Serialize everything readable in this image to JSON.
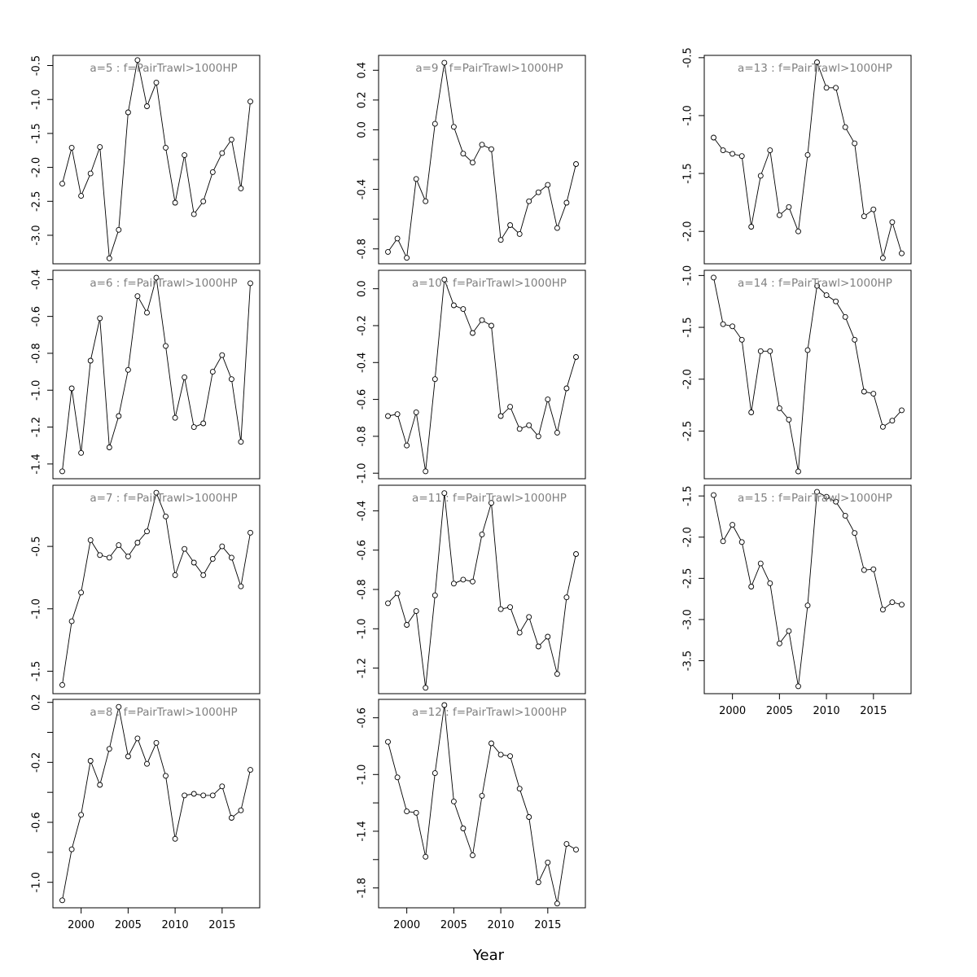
{
  "figure": {
    "xlabel": "Year"
  },
  "colors": {
    "line": "#000000",
    "title": "#808080",
    "frame": "#000000"
  },
  "chart_data": [
    {
      "type": "line",
      "title": "a=5  :  f=PairTrawl>1000HP",
      "x": [
        1998,
        1999,
        2000,
        2001,
        2002,
        2003,
        2004,
        2005,
        2006,
        2007,
        2008,
        2009,
        2010,
        2011,
        2012,
        2013,
        2014,
        2015,
        2016,
        2017,
        2018
      ],
      "values": [
        -2.24,
        -1.71,
        -2.42,
        -2.09,
        -1.7,
        -3.34,
        -2.92,
        -1.19,
        -0.42,
        -1.1,
        -0.75,
        -1.71,
        -2.52,
        -1.82,
        -2.69,
        -2.5,
        -2.07,
        -1.79,
        -1.59,
        -2.31,
        -1.03
      ],
      "xlim": [
        1997,
        2019
      ],
      "ylim": [
        -3.42,
        -0.35
      ],
      "yticks": [
        -3.0,
        -2.5,
        -2.0,
        -1.5,
        -1.0,
        -0.5
      ],
      "xticks": [
        2000,
        2005,
        2010,
        2015
      ],
      "show_xticks": false
    },
    {
      "type": "line",
      "title": "a=6  :  f=PairTrawl>1000HP",
      "x": [
        1998,
        1999,
        2000,
        2001,
        2002,
        2003,
        2004,
        2005,
        2006,
        2007,
        2008,
        2009,
        2010,
        2011,
        2012,
        2013,
        2014,
        2015,
        2016,
        2017,
        2018
      ],
      "values": [
        -1.44,
        -0.99,
        -1.34,
        -0.84,
        -0.61,
        -1.31,
        -1.14,
        -0.89,
        -0.49,
        -0.58,
        -0.39,
        -0.76,
        -1.15,
        -0.93,
        -1.2,
        -1.18,
        -0.9,
        -0.81,
        -0.94,
        -1.28,
        -0.42
      ],
      "xlim": [
        1997,
        2019
      ],
      "ylim": [
        -1.48,
        -0.35
      ],
      "yticks": [
        -1.4,
        -1.2,
        -1.0,
        -0.8,
        -0.6,
        -0.4
      ],
      "xticks": [
        2000,
        2005,
        2010,
        2015
      ],
      "show_xticks": false
    },
    {
      "type": "line",
      "title": "a=7  :  f=PairTrawl>1000HP",
      "x": [
        1998,
        1999,
        2000,
        2001,
        2002,
        2003,
        2004,
        2005,
        2006,
        2007,
        2008,
        2009,
        2010,
        2011,
        2012,
        2013,
        2014,
        2015,
        2016,
        2017,
        2018
      ],
      "values": [
        -1.61,
        -1.1,
        -0.87,
        -0.45,
        -0.57,
        -0.59,
        -0.49,
        -0.58,
        -0.47,
        -0.38,
        -0.07,
        -0.26,
        -0.73,
        -0.52,
        -0.63,
        -0.73,
        -0.6,
        -0.5,
        -0.59,
        -0.82,
        -0.39
      ],
      "xlim": [
        1997,
        2019
      ],
      "ylim": [
        -1.68,
        -0.01
      ],
      "yticks": [
        -1.5,
        -1.0,
        -0.5
      ],
      "xticks": [
        2000,
        2005,
        2010,
        2015
      ],
      "show_xticks": false
    },
    {
      "type": "line",
      "title": "a=8  :  f=PairTrawl>1000HP",
      "x": [
        1998,
        1999,
        2000,
        2001,
        2002,
        2003,
        2004,
        2005,
        2006,
        2007,
        2008,
        2009,
        2010,
        2011,
        2012,
        2013,
        2014,
        2015,
        2016,
        2017,
        2018
      ],
      "values": [
        -1.12,
        -0.78,
        -0.55,
        -0.19,
        -0.35,
        -0.11,
        0.17,
        -0.16,
        -0.04,
        -0.21,
        -0.07,
        -0.29,
        -0.71,
        -0.42,
        -0.41,
        -0.42,
        -0.42,
        -0.36,
        -0.57,
        -0.52,
        -0.25
      ],
      "xlim": [
        1997,
        2019
      ],
      "ylim": [
        -1.17,
        0.22
      ],
      "yticks": [
        -1.0,
        -0.6,
        -0.2,
        0.2
      ],
      "yticks_minor": [
        -0.8,
        -0.4,
        0.0
      ],
      "xticks": [
        2000,
        2005,
        2010,
        2015
      ],
      "show_xticks": true
    },
    {
      "type": "line",
      "title": "a=9  :  f=PairTrawl>1000HP",
      "x": [
        1998,
        1999,
        2000,
        2001,
        2002,
        2003,
        2004,
        2005,
        2006,
        2007,
        2008,
        2009,
        2010,
        2011,
        2012,
        2013,
        2014,
        2015,
        2016,
        2017,
        2018
      ],
      "values": [
        -0.82,
        -0.73,
        -0.86,
        -0.33,
        -0.48,
        0.04,
        0.45,
        0.02,
        -0.16,
        -0.22,
        -0.1,
        -0.13,
        -0.74,
        -0.64,
        -0.7,
        -0.48,
        -0.42,
        -0.37,
        -0.66,
        -0.49,
        -0.23
      ],
      "xlim": [
        1997,
        2019
      ],
      "ylim": [
        -0.9,
        0.5
      ],
      "yticks": [
        -0.8,
        -0.4,
        0.0,
        0.2,
        0.4
      ],
      "yticks_minor": [
        -0.6,
        -0.2
      ],
      "xticks": [
        2000,
        2005,
        2010,
        2015
      ],
      "show_xticks": false
    },
    {
      "type": "line",
      "title": "a=10  :  f=PairTrawl>1000HP",
      "x": [
        1998,
        1999,
        2000,
        2001,
        2002,
        2003,
        2004,
        2005,
        2006,
        2007,
        2008,
        2009,
        2010,
        2011,
        2012,
        2013,
        2014,
        2015,
        2016,
        2017,
        2018
      ],
      "values": [
        -0.69,
        -0.68,
        -0.85,
        -0.67,
        -0.99,
        -0.49,
        0.05,
        -0.09,
        -0.11,
        -0.24,
        -0.17,
        -0.2,
        -0.69,
        -0.64,
        -0.76,
        -0.74,
        -0.8,
        -0.6,
        -0.78,
        -0.54,
        -0.37
      ],
      "xlim": [
        1997,
        2019
      ],
      "ylim": [
        -1.03,
        0.1
      ],
      "yticks": [
        -1.0,
        -0.8,
        -0.6,
        -0.4,
        -0.2,
        0.0
      ],
      "xticks": [
        2000,
        2005,
        2010,
        2015
      ],
      "show_xticks": false
    },
    {
      "type": "line",
      "title": "a=11  :  f=PairTrawl>1000HP",
      "x": [
        1998,
        1999,
        2000,
        2001,
        2002,
        2003,
        2004,
        2005,
        2006,
        2007,
        2008,
        2009,
        2010,
        2011,
        2012,
        2013,
        2014,
        2015,
        2016,
        2017,
        2018
      ],
      "values": [
        -0.87,
        -0.82,
        -0.98,
        -0.91,
        -1.3,
        -0.83,
        -0.31,
        -0.77,
        -0.75,
        -0.76,
        -0.52,
        -0.36,
        -0.9,
        -0.89,
        -1.02,
        -0.94,
        -1.09,
        -1.04,
        -1.23,
        -0.84,
        -0.62
      ],
      "xlim": [
        1997,
        2019
      ],
      "ylim": [
        -1.33,
        -0.27
      ],
      "yticks": [
        -1.2,
        -1.0,
        -0.8,
        -0.6,
        -0.4
      ],
      "xticks": [
        2000,
        2005,
        2010,
        2015
      ],
      "show_xticks": false
    },
    {
      "type": "line",
      "title": "a=12  :  f=PairTrawl>1000HP",
      "x": [
        1998,
        1999,
        2000,
        2001,
        2002,
        2003,
        2004,
        2005,
        2006,
        2007,
        2008,
        2009,
        2010,
        2011,
        2012,
        2013,
        2014,
        2015,
        2016,
        2017,
        2018
      ],
      "values": [
        -0.77,
        -1.02,
        -1.26,
        -1.27,
        -1.58,
        -0.99,
        -0.51,
        -1.19,
        -1.38,
        -1.57,
        -1.15,
        -0.78,
        -0.86,
        -0.87,
        -1.1,
        -1.3,
        -1.76,
        -1.62,
        -1.91,
        -1.49,
        -1.53
      ],
      "xlim": [
        1997,
        2019
      ],
      "ylim": [
        -1.94,
        -0.47
      ],
      "yticks": [
        -1.8,
        -1.4,
        -1.0,
        -0.6
      ],
      "yticks_minor": [
        -1.6,
        -1.2,
        -0.8
      ],
      "xticks": [
        2000,
        2005,
        2010,
        2015
      ],
      "show_xticks": true
    },
    {
      "type": "line",
      "title": "a=13  :  f=PairTrawl>1000HP",
      "x": [
        1998,
        1999,
        2000,
        2001,
        2002,
        2003,
        2004,
        2005,
        2006,
        2007,
        2008,
        2009,
        2010,
        2011,
        2012,
        2013,
        2014,
        2015,
        2016,
        2017,
        2018
      ],
      "values": [
        -1.19,
        -1.3,
        -1.33,
        -1.35,
        -1.96,
        -1.52,
        -1.3,
        -1.86,
        -1.79,
        -2.0,
        -1.34,
        -0.54,
        -0.76,
        -0.76,
        -1.1,
        -1.24,
        -1.87,
        -1.81,
        -2.23,
        -1.92,
        -2.19
      ],
      "xlim": [
        1997,
        2019
      ],
      "ylim": [
        -2.28,
        -0.48
      ],
      "yticks": [
        -2.0,
        -1.5,
        -1.0,
        -0.5
      ],
      "xticks": [
        2000,
        2005,
        2010,
        2015
      ],
      "show_xticks": false
    },
    {
      "type": "line",
      "title": "a=14  :  f=PairTrawl>1000HP",
      "x": [
        1998,
        1999,
        2000,
        2001,
        2002,
        2003,
        2004,
        2005,
        2006,
        2007,
        2008,
        2009,
        2010,
        2011,
        2012,
        2013,
        2014,
        2015,
        2016,
        2017,
        2018
      ],
      "values": [
        -1.02,
        -1.47,
        -1.49,
        -1.62,
        -2.32,
        -1.73,
        -1.73,
        -2.28,
        -2.39,
        -2.89,
        -1.72,
        -1.1,
        -1.19,
        -1.25,
        -1.4,
        -1.62,
        -2.12,
        -2.14,
        -2.46,
        -2.4,
        -2.3
      ],
      "xlim": [
        1997,
        2019
      ],
      "ylim": [
        -2.96,
        -0.95
      ],
      "yticks": [
        -2.5,
        -2.0,
        -1.5,
        -1.0
      ],
      "xticks": [
        2000,
        2005,
        2010,
        2015
      ],
      "show_xticks": false
    },
    {
      "type": "line",
      "title": "a=15  :  f=PairTrawl>1000HP",
      "x": [
        1998,
        1999,
        2000,
        2001,
        2002,
        2003,
        2004,
        2005,
        2006,
        2007,
        2008,
        2009,
        2010,
        2011,
        2012,
        2013,
        2014,
        2015,
        2016,
        2017,
        2018
      ],
      "values": [
        -1.49,
        -2.05,
        -1.85,
        -2.06,
        -2.6,
        -2.32,
        -2.56,
        -3.29,
        -3.14,
        -3.81,
        -2.83,
        -1.45,
        -1.51,
        -1.57,
        -1.74,
        -1.95,
        -2.4,
        -2.39,
        -2.88,
        -2.79,
        -2.82
      ],
      "xlim": [
        1997,
        2019
      ],
      "ylim": [
        -3.9,
        -1.37
      ],
      "yticks": [
        -3.5,
        -3.0,
        -2.5,
        -2.0,
        -1.5
      ],
      "xticks": [
        2000,
        2005,
        2010,
        2015
      ],
      "show_xticks": true
    }
  ]
}
